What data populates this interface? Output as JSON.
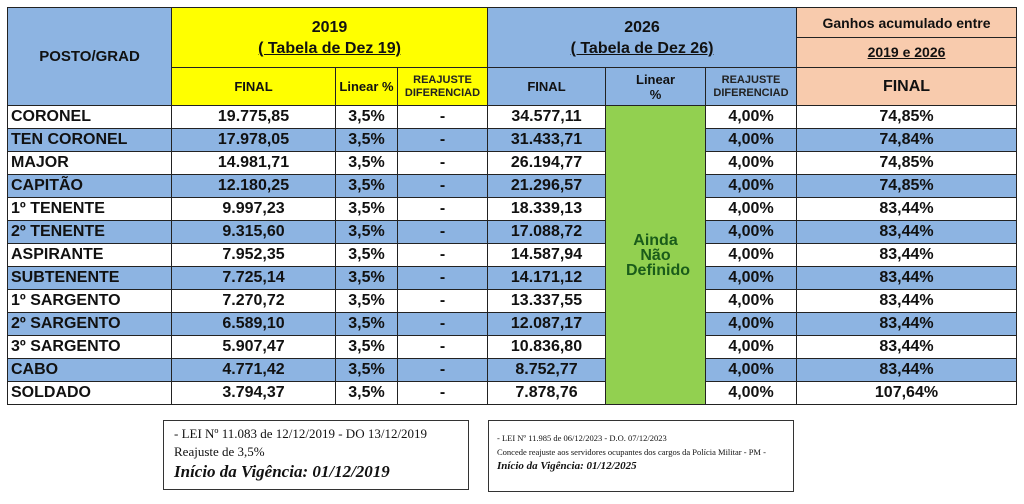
{
  "header": {
    "posto": "POSTO/GRAD",
    "y2019": {
      "year": "2019",
      "subtitle": "( Tabela de Dez 19)",
      "final": "FINAL",
      "linear": "Linear %",
      "reajuste": "REAJUSTE DIFERENCIAD"
    },
    "y2026": {
      "year": "2026",
      "subtitle": "( Tabela de Dez 26)",
      "final": "FINAL",
      "linear": "Linear %",
      "reajuste": "REAJUSTE DIFERENCIAD",
      "linear_merged": "Ainda Não Definido"
    },
    "ganhos": {
      "title": "Ganhos acumulado entre",
      "subtitle": "2019 e 2026",
      "final": "FINAL"
    }
  },
  "rows": [
    {
      "posto": "CORONEL",
      "f2019": "19.775,85",
      "lin2019": "3,5%",
      "reaj2019": "-",
      "f2026": "34.577,11",
      "reaj2026": "4,00%",
      "ganho": "74,85%"
    },
    {
      "posto": "TEN CORONEL",
      "f2019": "17.978,05",
      "lin2019": "3,5%",
      "reaj2019": "-",
      "f2026": "31.433,71",
      "reaj2026": "4,00%",
      "ganho": "74,84%"
    },
    {
      "posto": "MAJOR",
      "f2019": "14.981,71",
      "lin2019": "3,5%",
      "reaj2019": "-",
      "f2026": "26.194,77",
      "reaj2026": "4,00%",
      "ganho": "74,85%"
    },
    {
      "posto": "CAPITÃO",
      "f2019": "12.180,25",
      "lin2019": "3,5%",
      "reaj2019": "-",
      "f2026": "21.296,57",
      "reaj2026": "4,00%",
      "ganho": "74,85%"
    },
    {
      "posto": "1º TENENTE",
      "f2019": "9.997,23",
      "lin2019": "3,5%",
      "reaj2019": "-",
      "f2026": "18.339,13",
      "reaj2026": "4,00%",
      "ganho": "83,44%"
    },
    {
      "posto": "2º TENENTE",
      "f2019": "9.315,60",
      "lin2019": "3,5%",
      "reaj2019": "-",
      "f2026": "17.088,72",
      "reaj2026": "4,00%",
      "ganho": "83,44%"
    },
    {
      "posto": "ASPIRANTE",
      "f2019": "7.952,35",
      "lin2019": "3,5%",
      "reaj2019": "-",
      "f2026": "14.587,94",
      "reaj2026": "4,00%",
      "ganho": "83,44%"
    },
    {
      "posto": "SUBTENENTE",
      "f2019": "7.725,14",
      "lin2019": "3,5%",
      "reaj2019": "-",
      "f2026": "14.171,12",
      "reaj2026": "4,00%",
      "ganho": "83,44%"
    },
    {
      "posto": "1º SARGENTO",
      "f2019": "7.270,72",
      "lin2019": "3,5%",
      "reaj2019": "-",
      "f2026": "13.337,55",
      "reaj2026": "4,00%",
      "ganho": "83,44%"
    },
    {
      "posto": "2º SARGENTO",
      "f2019": "6.589,10",
      "lin2019": "3,5%",
      "reaj2019": "-",
      "f2026": "12.087,17",
      "reaj2026": "4,00%",
      "ganho": "83,44%"
    },
    {
      "posto": "3º SARGENTO",
      "f2019": "5.907,47",
      "lin2019": "3,5%",
      "reaj2019": "-",
      "f2026": "10.836,80",
      "reaj2026": "4,00%",
      "ganho": "83,44%"
    },
    {
      "posto": "CABO",
      "f2019": "4.771,42",
      "lin2019": "3,5%",
      "reaj2019": "-",
      "f2026": "8.752,77",
      "reaj2026": "4,00%",
      "ganho": "83,44%"
    },
    {
      "posto": "SOLDADO",
      "f2019": "3.794,37",
      "lin2019": "3,5%",
      "reaj2019": "-",
      "f2026": "7.878,76",
      "reaj2026": "4,00%",
      "ganho": "107,64%"
    }
  ],
  "notes": {
    "lei2019": {
      "line1": "- LEI Nº 11.083 de 12/12/2019 - DO 13/12/2019",
      "line2": "Reajuste de 3,5%",
      "line3": "Início da Vigência: 01/12/2019"
    },
    "lei2023": {
      "line1": "- LEI Nº 11.985 de 06/12/2023 - D.O. 07/12/2023",
      "line2": "Concede reajuste aos servidores ocupantes dos cargos da Polícia Militar - PM -",
      "line3": "Início da Vigência: 01/12/2025"
    }
  },
  "colors": {
    "blue": "#8db4e2",
    "yellow": "#ffff00",
    "peach": "#f8cbad",
    "green": "#92d050"
  }
}
